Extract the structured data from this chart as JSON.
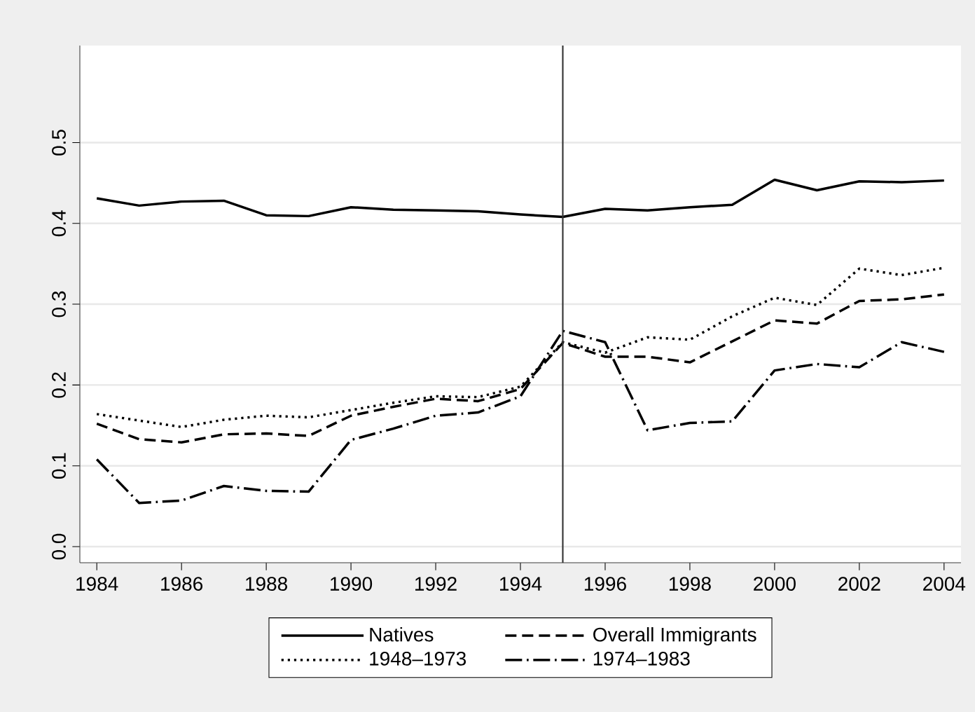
{
  "chart_data": {
    "type": "line",
    "x": [
      1984,
      1985,
      1986,
      1987,
      1988,
      1989,
      1990,
      1991,
      1992,
      1993,
      1994,
      1995,
      1996,
      1997,
      1998,
      1999,
      2000,
      2001,
      2002,
      2003,
      2004
    ],
    "series": [
      {
        "name": "Natives",
        "color": "#000000",
        "line_style": "solid",
        "values": [
          0.431,
          0.422,
          0.427,
          0.428,
          0.41,
          0.409,
          0.42,
          0.417,
          0.416,
          0.415,
          0.411,
          0.408,
          0.418,
          0.416,
          0.42,
          0.423,
          0.454,
          0.441,
          0.452,
          0.451,
          0.453
        ]
      },
      {
        "name": "Overall Immigrants",
        "color": "#000000",
        "line_style": "dashed",
        "values": [
          0.152,
          0.133,
          0.129,
          0.139,
          0.14,
          0.137,
          0.162,
          0.173,
          0.183,
          0.18,
          0.195,
          0.252,
          0.235,
          0.235,
          0.228,
          0.254,
          0.28,
          0.276,
          0.304,
          0.306,
          0.312
        ]
      },
      {
        "name": "1948–1973",
        "color": "#000000",
        "line_style": "dotted",
        "values": [
          0.164,
          0.156,
          0.148,
          0.157,
          0.162,
          0.16,
          0.169,
          0.178,
          0.186,
          0.185,
          0.198,
          0.253,
          0.24,
          0.259,
          0.256,
          0.285,
          0.308,
          0.299,
          0.344,
          0.336,
          0.345
        ]
      },
      {
        "name": "1974–1983",
        "color": "#000000",
        "line_style": "dashdot",
        "values": [
          0.108,
          0.054,
          0.057,
          0.075,
          0.069,
          0.068,
          0.132,
          0.146,
          0.162,
          0.166,
          0.186,
          0.267,
          0.253,
          0.144,
          0.153,
          0.155,
          0.218,
          0.226,
          0.222,
          0.253,
          0.241
        ]
      }
    ],
    "xlim": [
      1983.6,
      2004.4
    ],
    "ylim": [
      -0.02,
      0.62
    ],
    "xticks": [
      1984,
      1986,
      1988,
      1990,
      1992,
      1994,
      1996,
      1998,
      2000,
      2002,
      2004
    ],
    "yticks": [
      {
        "value": 0,
        "label": "0.0"
      },
      0.1,
      0.2,
      0.3,
      0.4,
      0.5
    ],
    "grid": "y",
    "legend": "bottom",
    "ref_lines": [
      {
        "axis": "x",
        "value": 1995,
        "color": "#333333"
      }
    ]
  }
}
